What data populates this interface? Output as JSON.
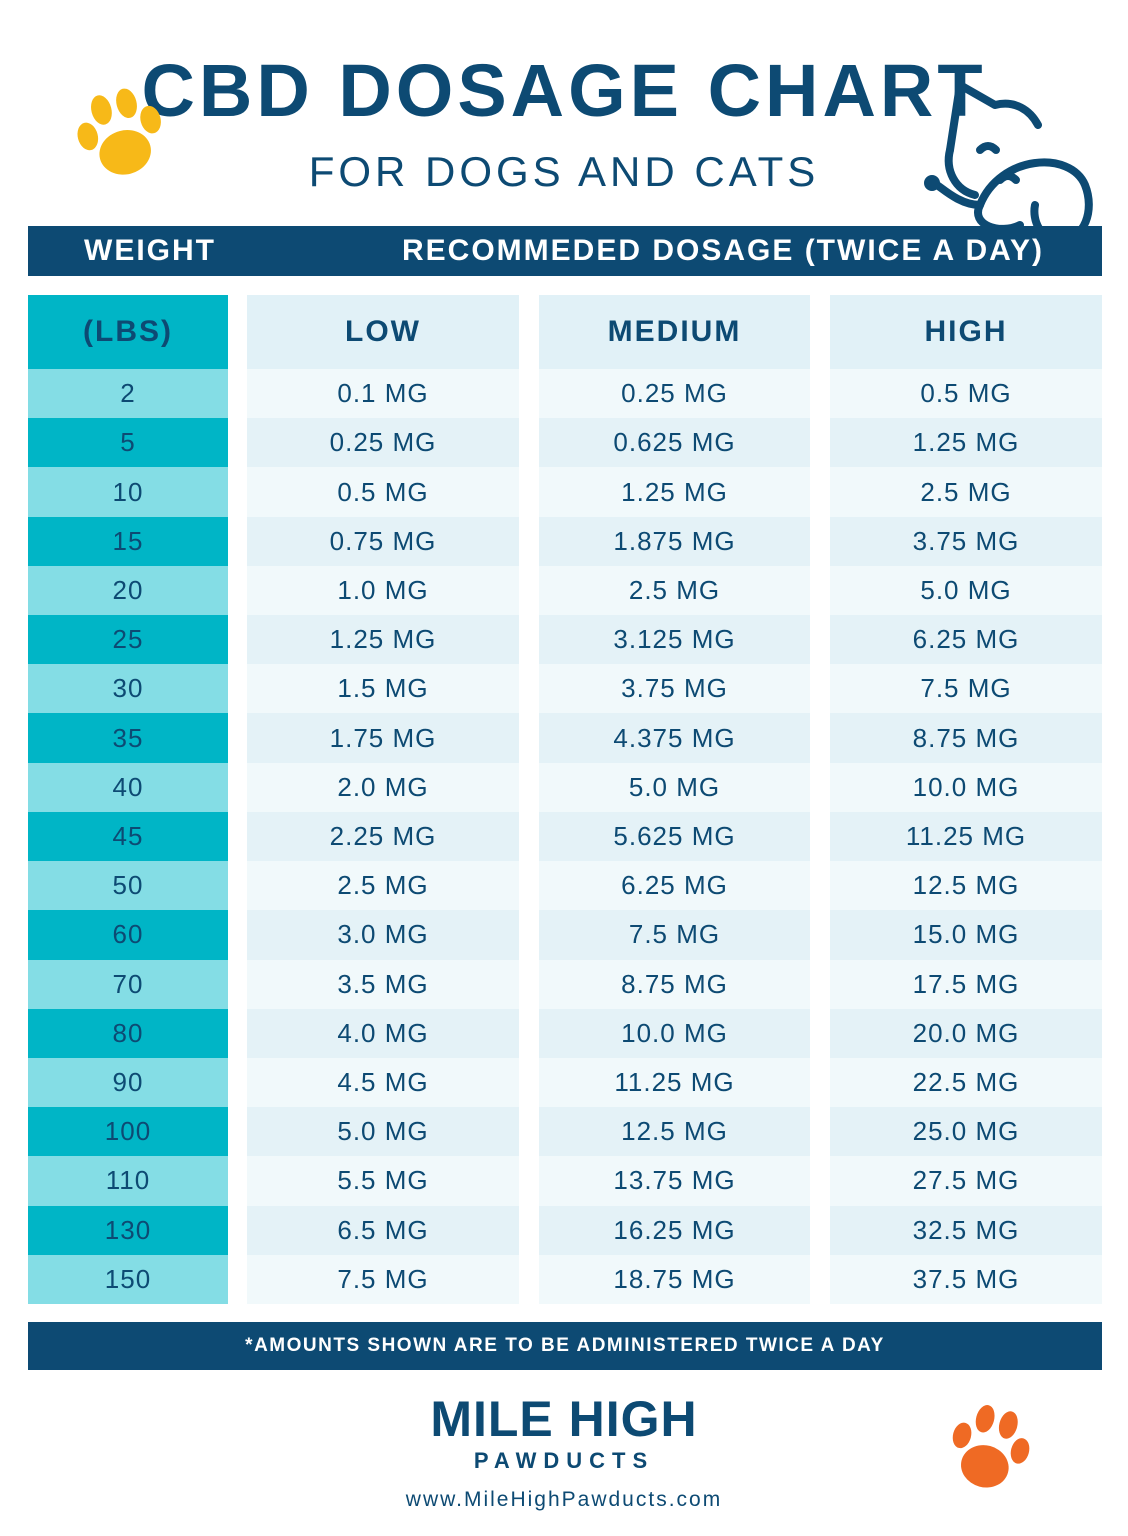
{
  "header": {
    "title": "CBD DOSAGE CHART",
    "subtitle": "FOR DOGS AND CATS"
  },
  "table": {
    "headers": [
      "WEIGHT",
      "RECOMMEDED DOSAGE (TWICE A DAY)"
    ],
    "columns": [
      "(LBS)",
      "LOW",
      "MEDIUM",
      "HIGH"
    ],
    "rows": [
      [
        "2",
        "0.1 MG",
        "0.25 MG",
        "0.5 MG"
      ],
      [
        "5",
        "0.25 MG",
        "0.625 MG",
        "1.25 MG"
      ],
      [
        "10",
        "0.5 MG",
        "1.25 MG",
        "2.5 MG"
      ],
      [
        "15",
        "0.75 MG",
        "1.875 MG",
        "3.75 MG"
      ],
      [
        "20",
        "1.0 MG",
        "2.5 MG",
        "5.0 MG"
      ],
      [
        "25",
        "1.25 MG",
        "3.125 MG",
        "6.25 MG"
      ],
      [
        "30",
        "1.5 MG",
        "3.75 MG",
        "7.5 MG"
      ],
      [
        "35",
        "1.75 MG",
        "4.375 MG",
        "8.75 MG"
      ],
      [
        "40",
        "2.0 MG",
        "5.0 MG",
        "10.0 MG"
      ],
      [
        "45",
        "2.25 MG",
        "5.625 MG",
        "11.25 MG"
      ],
      [
        "50",
        "2.5 MG",
        "6.25 MG",
        "12.5 MG"
      ],
      [
        "60",
        "3.0 MG",
        "7.5 MG",
        "15.0 MG"
      ],
      [
        "70",
        "3.5 MG",
        "8.75 MG",
        "17.5 MG"
      ],
      [
        "80",
        "4.0 MG",
        "10.0 MG",
        "20.0 MG"
      ],
      [
        "90",
        "4.5 MG",
        "11.25 MG",
        "22.5 MG"
      ],
      [
        "100",
        "5.0 MG",
        "12.5 MG",
        "25.0 MG"
      ],
      [
        "110",
        "5.5 MG",
        "13.75 MG",
        "27.5 MG"
      ],
      [
        "130",
        "6.5 MG",
        "16.25 MG",
        "32.5 MG"
      ],
      [
        "150",
        "7.5 MG",
        "18.75 MG",
        "37.5 MG"
      ]
    ]
  },
  "footnote": "*AMOUNTS SHOWN ARE TO BE ADMINISTERED TWICE A DAY",
  "brand": {
    "name": "MILE HIGH",
    "sub": "PAWDUCTS",
    "url": "www.MileHighPawducts.com"
  }
}
